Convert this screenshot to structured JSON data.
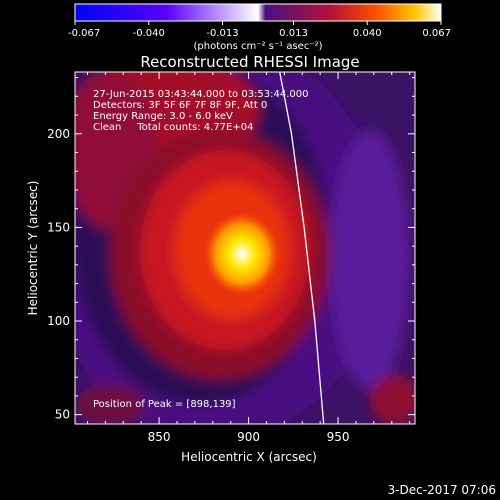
{
  "colorbar": {
    "ticks": [
      "-0.067",
      "-0.040",
      "-0.013",
      "0.013",
      "0.040",
      "0.067"
    ],
    "units": "(photons cm⁻² s⁻¹ asec⁻²)",
    "range": [
      -0.067,
      0.067
    ],
    "colors": [
      "#0000ff",
      "#5a00ff",
      "#ffffff",
      "#5b0f8e",
      "#c8102a",
      "#ff5a00",
      "#ffd200",
      "#ffffff"
    ]
  },
  "chart_data": {
    "type": "heatmap",
    "title": "Reconstructed RHESSI Image",
    "xlabel": "Heliocentric X (arcsec)",
    "ylabel": "Heliocentric Y (arcsec)",
    "xlim": [
      803,
      993
    ],
    "ylim": [
      45,
      233
    ],
    "xticks": [
      850,
      900,
      950
    ],
    "yticks": [
      50,
      100,
      150,
      200
    ],
    "info_lines": [
      "27-Jun-2015 03:43:44.000 to 03:53:44.000",
      "Detectors: 3F 5F 6F 7F 8F 9F, Att 0",
      "Energy Range: 3.0 - 6.0 keV",
      "Clean     Total counts: 4.77E+04"
    ],
    "peak_label": "Position of Peak = [898,139]",
    "peak": [
      898,
      139
    ],
    "limb_color": "#ffffff"
  },
  "footer": {
    "date": "3-Dec-2017 07:06"
  }
}
